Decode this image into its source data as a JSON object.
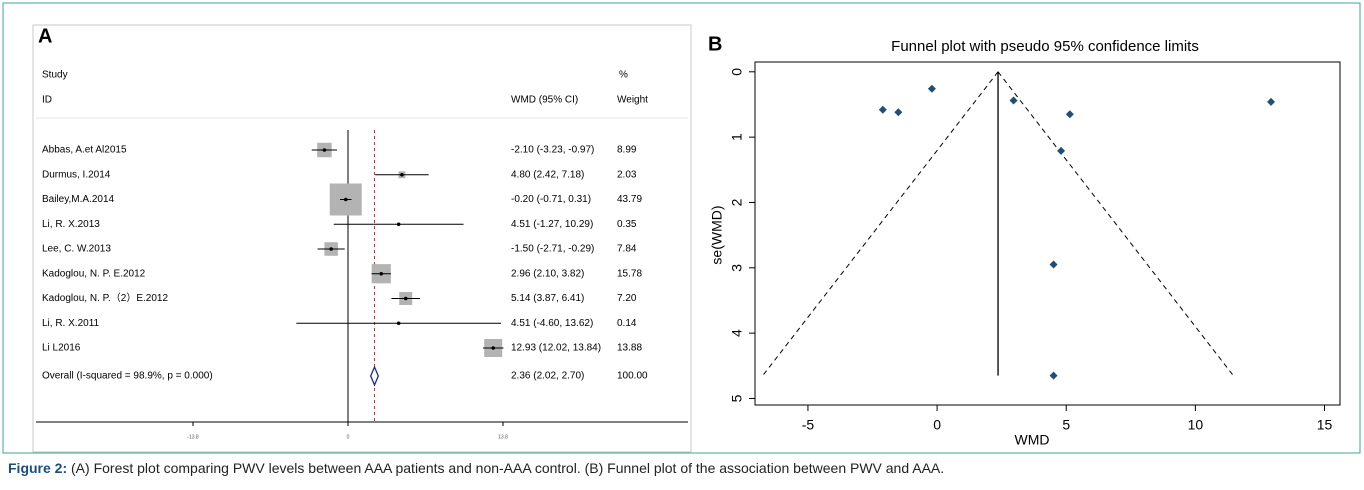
{
  "chart_data": [
    {
      "type": "forest",
      "panel": "A",
      "headers": {
        "study": "Study",
        "id": "ID",
        "estimate": "WMD (95% CI)",
        "pct": "%",
        "weight": "Weight"
      },
      "studies": [
        {
          "name": "Abbas, A.et Al2015",
          "wmd": -2.1,
          "lower": -3.23,
          "upper": -0.97,
          "label": "-2.10 (-3.23, -0.97)",
          "weight": 8.99
        },
        {
          "name": "Durmus, I.2014",
          "wmd": 4.8,
          "lower": 2.42,
          "upper": 7.18,
          "label": "4.80 (2.42, 7.18)",
          "weight": 2.03
        },
        {
          "name": "Bailey,M.A.2014",
          "wmd": -0.2,
          "lower": -0.71,
          "upper": 0.31,
          "label": "-0.20 (-0.71, 0.31)",
          "weight": 43.79
        },
        {
          "name": "Li, R. X.2013",
          "wmd": 4.51,
          "lower": -1.27,
          "upper": 10.29,
          "label": "4.51 (-1.27, 10.29)",
          "weight": 0.35
        },
        {
          "name": "Lee, C. W.2013",
          "wmd": -1.5,
          "lower": -2.71,
          "upper": -0.29,
          "label": "-1.50 (-2.71, -0.29)",
          "weight": 7.84
        },
        {
          "name": "Kadoglou, N. P. E.2012",
          "wmd": 2.96,
          "lower": 2.1,
          "upper": 3.82,
          "label": "2.96 (2.10, 3.82)",
          "weight": 15.78
        },
        {
          "name": "Kadoglou, N. P.（2）E.2012",
          "wmd": 5.14,
          "lower": 3.87,
          "upper": 6.41,
          "label": "5.14 (3.87, 6.41)",
          "weight": {
            "value": 7.2,
            "label": "7.20"
          }
        },
        {
          "name": "Li, R. X.2011",
          "wmd": 4.51,
          "lower": -4.6,
          "upper": 13.62,
          "label": "4.51 (-4.60, 13.62)",
          "weight": 0.14
        },
        {
          "name": "Li L2016",
          "wmd": 12.93,
          "lower": 12.02,
          "upper": 13.84,
          "label": "12.93 (12.02, 13.84)",
          "weight": 13.88
        }
      ],
      "overall": {
        "name": "Overall  (I-squared = 98.9%, p = 0.000)",
        "wmd": 2.36,
        "lower": 2.02,
        "upper": 2.7,
        "label": "2.36 (2.02, 2.70)",
        "weight": {
          "value": 100,
          "label": "100.00"
        }
      },
      "null_line": 0,
      "xlim": [
        -13.8,
        13.8
      ],
      "xticks": [
        -13.8,
        0,
        13.8
      ],
      "box_color": "#b3b3b3",
      "overall_color": "#c0392b"
    },
    {
      "type": "funnel",
      "panel": "B",
      "title": "Funnel plot with pseudo 95% confidence limits",
      "xlabel": "WMD",
      "ylabel": "se(WMD)",
      "series": [
        {
          "x": [
            -2.1,
            4.8,
            -0.2,
            4.51,
            -1.5,
            2.96,
            5.14,
            4.51,
            12.93
          ],
          "values": [
            0.58,
            1.21,
            0.26,
            2.95,
            0.62,
            0.44,
            0.65,
            4.65,
            0.46
          ],
          "color": "#1f4e79"
        }
      ],
      "limit_lines": {
        "se": [
          0,
          4.65
        ],
        "center": 2.36,
        "lower": -6.75,
        "upper": 11.47
      },
      "xlim": [
        -7.05,
        15.6
      ],
      "xticks": [
        -5,
        0,
        5,
        10,
        15
      ],
      "ylim": [
        5.1,
        -0.15
      ],
      "yticks": [
        0,
        1,
        2,
        3,
        4,
        5
      ]
    }
  ],
  "caption": {
    "label": "Figure 2:",
    "text": " (A) Forest plot comparing PWV levels between AAA patients and non-AAA control. (B) Funnel plot of the association between PWV and AAA."
  }
}
